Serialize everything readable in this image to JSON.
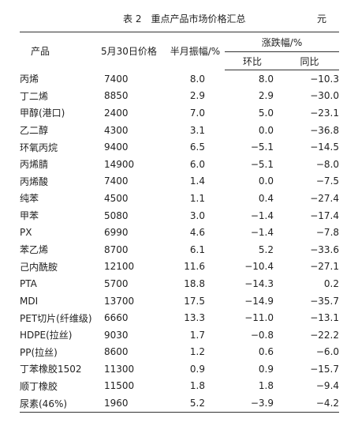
{
  "caption": {
    "title": "表 2　重点产品市场价格汇总",
    "unit": "元"
  },
  "headers": {
    "product": "产品",
    "price": "5月30日价格",
    "half_month": "半月振幅/%",
    "change_group": "涨跌幅/%",
    "mom": "环比",
    "yoy": "同比"
  },
  "rows": [
    {
      "name": "丙烯",
      "price": "7400",
      "amp": "8.0",
      "mom": "8.0",
      "yoy": "−10.3"
    },
    {
      "name": "丁二烯",
      "price": "8850",
      "amp": "2.9",
      "mom": "2.9",
      "yoy": "−30.0"
    },
    {
      "name": "甲醇(港口)",
      "price": "2400",
      "amp": "7.0",
      "mom": "5.0",
      "yoy": "−23.1"
    },
    {
      "name": "乙二醇",
      "price": "4300",
      "amp": "3.1",
      "mom": "0.0",
      "yoy": "−36.8"
    },
    {
      "name": "环氧丙烷",
      "price": "9400",
      "amp": "6.5",
      "mom": "−5.1",
      "yoy": "−14.5"
    },
    {
      "name": "丙烯腈",
      "price": "14900",
      "amp": "6.0",
      "mom": "−5.1",
      "yoy": "−8.0"
    },
    {
      "name": "丙烯酸",
      "price": "7400",
      "amp": "1.4",
      "mom": "0.0",
      "yoy": "−7.5"
    },
    {
      "name": "纯苯",
      "price": "4500",
      "amp": "1.1",
      "mom": "0.4",
      "yoy": "−27.4"
    },
    {
      "name": "甲苯",
      "price": "5080",
      "amp": "3.0",
      "mom": "−1.4",
      "yoy": "−17.4"
    },
    {
      "name": "PX",
      "price": "6990",
      "amp": "4.6",
      "mom": "−1.4",
      "yoy": "−7.8"
    },
    {
      "name": "苯乙烯",
      "price": "8700",
      "amp": "6.1",
      "mom": "5.2",
      "yoy": "−33.6"
    },
    {
      "name": "己内酰胺",
      "price": "12100",
      "amp": "11.6",
      "mom": "−10.4",
      "yoy": "−27.1"
    },
    {
      "name": "PTA",
      "price": "5700",
      "amp": "18.8",
      "mom": "−14.3",
      "yoy": "0.2"
    },
    {
      "name": "MDI",
      "price": "13700",
      "amp": "17.5",
      "mom": "−14.9",
      "yoy": "−35.7"
    },
    {
      "name": "PET切片(纤维级)",
      "price": "6660",
      "amp": "13.3",
      "mom": "−11.0",
      "yoy": "−13.1"
    },
    {
      "name": "HDPE(拉丝)",
      "price": "9030",
      "amp": "1.7",
      "mom": "−0.8",
      "yoy": "−22.2"
    },
    {
      "name": "PP(拉丝)",
      "price": "8600",
      "amp": "1.2",
      "mom": "0.6",
      "yoy": "−6.0"
    },
    {
      "name": "丁苯橡胶1502",
      "price": "11300",
      "amp": "0.9",
      "mom": "0.9",
      "yoy": "−15.7"
    },
    {
      "name": "顺丁橡胶",
      "price": "11500",
      "amp": "1.8",
      "mom": "1.8",
      "yoy": "−9.4"
    },
    {
      "name": "尿素(46%)",
      "price": "1960",
      "amp": "5.2",
      "mom": "−3.9",
      "yoy": "−4.2"
    }
  ]
}
